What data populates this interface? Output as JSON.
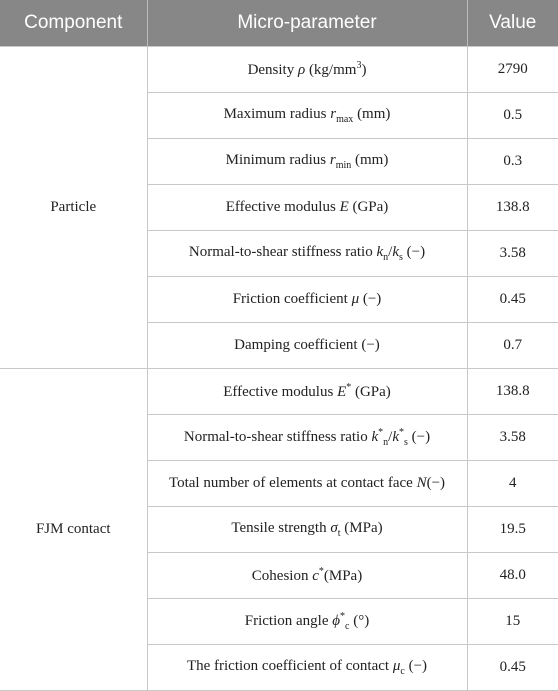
{
  "table": {
    "header": [
      "Component",
      "Micro-parameter",
      "Value"
    ],
    "groups": [
      {
        "component": "Particle",
        "rows": [
          {
            "parameter": [
              "Density ",
              {
                "i": "ρ"
              },
              " (kg/mm",
              {
                "sup": "3"
              },
              ")"
            ],
            "value": "2790"
          },
          {
            "parameter": [
              "Maximum radius ",
              {
                "i": "r"
              },
              {
                "sub": "max"
              },
              " (mm)"
            ],
            "value": "0.5"
          },
          {
            "parameter": [
              "Minimum radius ",
              {
                "i": "r"
              },
              {
                "sub": "min"
              },
              " (mm)"
            ],
            "value": "0.3"
          },
          {
            "parameter": [
              "Effective modulus ",
              {
                "i": "E"
              },
              " (GPa)"
            ],
            "value": "138.8"
          },
          {
            "parameter": [
              "Normal-to-shear stiffness ratio ",
              {
                "i": "k"
              },
              {
                "sub": "n"
              },
              "/",
              {
                "i": "k"
              },
              {
                "sub": "s"
              },
              " (−)"
            ],
            "value": "3.58"
          },
          {
            "parameter": [
              "Friction coefficient ",
              {
                "i": "μ"
              },
              " (−)"
            ],
            "value": "0.45"
          },
          {
            "parameter": [
              "Damping coefficient (−)"
            ],
            "value": "0.7"
          }
        ]
      },
      {
        "component": "FJM contact",
        "rows": [
          {
            "parameter": [
              "Effective modulus ",
              {
                "i": "E"
              },
              {
                "sup": "*"
              },
              " (GPa)"
            ],
            "value": "138.8"
          },
          {
            "parameter": [
              "Normal-to-shear stiffness ratio ",
              {
                "i": "k"
              },
              {
                "sup": "*"
              },
              {
                "sub": "n"
              },
              "/",
              {
                "i": "k"
              },
              {
                "sup": "*"
              },
              {
                "sub": "s"
              },
              " (−)"
            ],
            "value": "3.58"
          },
          {
            "parameter": [
              "Total number of elements at contact face ",
              {
                "i": "N"
              },
              "(−)"
            ],
            "value": "4"
          },
          {
            "parameter": [
              "Tensile strength ",
              {
                "i": "σ"
              },
              {
                "sub": "t"
              },
              " (MPa)"
            ],
            "value": "19.5"
          },
          {
            "parameter": [
              "Cohesion ",
              {
                "i": "c"
              },
              {
                "sup": "*"
              },
              "(MPa)"
            ],
            "value": "48.0"
          },
          {
            "parameter": [
              "Friction angle ",
              {
                "i": "ϕ"
              },
              {
                "sup": "*"
              },
              {
                "sub": "c"
              },
              " (°)"
            ],
            "value": "15"
          },
          {
            "parameter": [
              "The friction coefficient of contact ",
              {
                "i": "μ"
              },
              {
                "sub": "c"
              },
              " (−)"
            ],
            "value": "0.45"
          }
        ]
      }
    ]
  }
}
